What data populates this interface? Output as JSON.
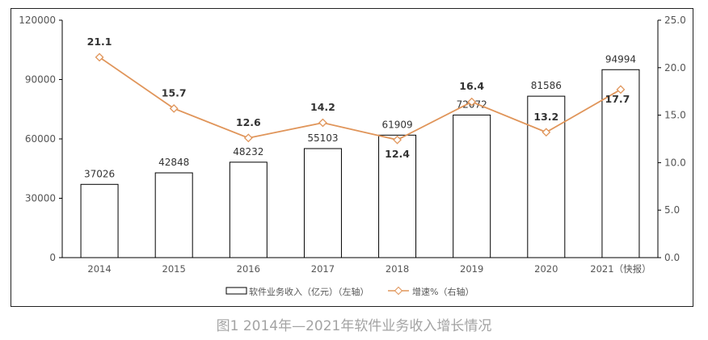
{
  "chart_data": {
    "type": "bar+line",
    "categories": [
      "2014",
      "2015",
      "2016",
      "2017",
      "2018",
      "2019",
      "2020",
      "2021（快报）"
    ],
    "series": [
      {
        "name": "软件业务收入（亿元）（左轴）",
        "type": "bar",
        "axis": "left",
        "values": [
          37026,
          42848,
          48232,
          55103,
          61909,
          72072,
          81586,
          94994
        ]
      },
      {
        "name": "增速%（右轴）",
        "type": "line",
        "axis": "right",
        "values": [
          21.1,
          15.7,
          12.6,
          14.2,
          12.4,
          16.4,
          13.2,
          17.7
        ]
      }
    ],
    "left_axis": {
      "ylim": [
        0,
        120000
      ],
      "ticks": [
        "0",
        "30000",
        "60000",
        "90000",
        "120000"
      ]
    },
    "right_axis": {
      "ylim": [
        0,
        25
      ],
      "ticks": [
        "0.0",
        "5.0",
        "10.0",
        "15.0",
        "20.0",
        "25.0"
      ]
    },
    "legend_position": "bottom",
    "grid": false,
    "colors": {
      "bar_fill": "#ffffff",
      "bar_stroke": "#000000",
      "line": "#E0955A"
    }
  },
  "caption": "图1  2014年—2021年软件业务收入增长情况"
}
